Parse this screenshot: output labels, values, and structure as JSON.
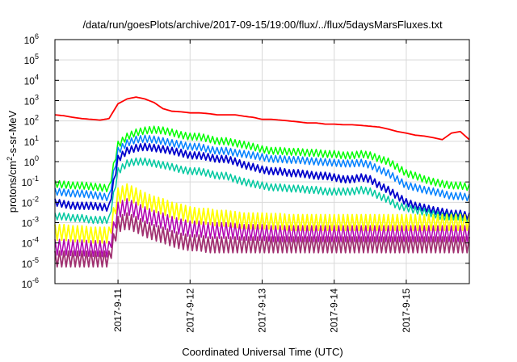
{
  "chart_data": {
    "type": "line",
    "title": "/data/run/goesPlots/archive/2017-09-15/19:00/flux/../flux/5daysMarsFluxes.txt",
    "xlabel": "Coordinated Universal Time (UTC)",
    "ylabel": {
      "pre": "protons/cm",
      "sup": "2",
      "post": "-s-sr-MeV"
    },
    "yscale": "log",
    "ylim": [
      1e-06,
      1000000.0
    ],
    "y_ticks": [
      {
        "exp": "-6",
        "value": 1e-06
      },
      {
        "exp": "-5",
        "value": 1e-05
      },
      {
        "exp": "-4",
        "value": 0.0001
      },
      {
        "exp": "-3",
        "value": 0.001
      },
      {
        "exp": "-2",
        "value": 0.01
      },
      {
        "exp": "-1",
        "value": 0.1
      },
      {
        "exp": "0",
        "value": 1
      },
      {
        "exp": "1",
        "value": 10
      },
      {
        "exp": "2",
        "value": 100
      },
      {
        "exp": "3",
        "value": 1000.0
      },
      {
        "exp": "4",
        "value": 10000.0
      },
      {
        "exp": "5",
        "value": 100000.0
      },
      {
        "exp": "6",
        "value": 1000000.0
      }
    ],
    "xlim": [
      "2017-09-10 03:00",
      "2017-09-15 21:00"
    ],
    "x_ticks": [
      {
        "label": "2017-9-11",
        "value": "2017-09-11 00:00"
      },
      {
        "label": "2017-9-12",
        "value": "2017-09-12 00:00"
      },
      {
        "label": "2017-9-13",
        "value": "2017-09-13 00:00"
      },
      {
        "label": "2017-9-14",
        "value": "2017-09-14 00:00"
      },
      {
        "label": "2017-9-15",
        "value": "2017-09-15 00:00"
      }
    ],
    "grid": true,
    "legend": false,
    "x": [
      "2017-09-10 03:00",
      "2017-09-10 06:00",
      "2017-09-10 09:00",
      "2017-09-10 12:00",
      "2017-09-10 15:00",
      "2017-09-10 18:00",
      "2017-09-10 21:00",
      "2017-09-11 00:00",
      "2017-09-11 03:00",
      "2017-09-11 06:00",
      "2017-09-11 09:00",
      "2017-09-11 12:00",
      "2017-09-11 15:00",
      "2017-09-11 18:00",
      "2017-09-11 21:00",
      "2017-09-12 00:00",
      "2017-09-12 03:00",
      "2017-09-12 06:00",
      "2017-09-12 09:00",
      "2017-09-12 12:00",
      "2017-09-12 15:00",
      "2017-09-12 18:00",
      "2017-09-12 21:00",
      "2017-09-13 00:00",
      "2017-09-13 03:00",
      "2017-09-13 06:00",
      "2017-09-13 09:00",
      "2017-09-13 12:00",
      "2017-09-13 15:00",
      "2017-09-13 18:00",
      "2017-09-13 21:00",
      "2017-09-14 00:00",
      "2017-09-14 03:00",
      "2017-09-14 06:00",
      "2017-09-14 09:00",
      "2017-09-14 12:00",
      "2017-09-14 15:00",
      "2017-09-14 18:00",
      "2017-09-14 21:00",
      "2017-09-15 00:00",
      "2017-09-15 03:00",
      "2017-09-15 06:00",
      "2017-09-15 09:00",
      "2017-09-15 12:00",
      "2017-09-15 15:00",
      "2017-09-15 18:00",
      "2017-09-15 21:00"
    ],
    "series": [
      {
        "color": "#ff0000",
        "width": 1.8,
        "values": [
          200,
          180,
          150,
          130,
          120,
          110,
          130,
          700,
          1200,
          1500,
          1200,
          800,
          400,
          300,
          280,
          250,
          250,
          230,
          200,
          200,
          200,
          170,
          150,
          120,
          120,
          110,
          100,
          90,
          80,
          80,
          70,
          70,
          65,
          65,
          60,
          55,
          50,
          40,
          30,
          25,
          20,
          18,
          15,
          12,
          25,
          30,
          12
        ]
      },
      {
        "color": "#00ff00",
        "width": 1.5,
        "values": [
          0.12,
          0.11,
          0.1,
          0.1,
          0.09,
          0.08,
          0.07,
          10,
          25,
          40,
          50,
          55,
          50,
          40,
          30,
          25,
          25,
          20,
          15,
          15,
          12,
          10,
          8,
          6,
          5,
          5,
          4.5,
          4.5,
          4,
          4,
          3.5,
          3.5,
          3,
          3,
          3.5,
          3,
          2,
          1.5,
          0.8,
          0.4,
          0.3,
          0.2,
          0.15,
          0.12,
          0.1,
          0.1,
          0.08
        ]
      },
      {
        "color": "#0080ff",
        "width": 1.5,
        "values": [
          0.05,
          0.045,
          0.04,
          0.04,
          0.035,
          0.03,
          0.025,
          5,
          12,
          18,
          20,
          18,
          15,
          12,
          10,
          8,
          8,
          6,
          5,
          5,
          4,
          3.5,
          3,
          2.5,
          2,
          2,
          1.8,
          1.8,
          1.6,
          1.5,
          1.4,
          1.3,
          1.2,
          1.2,
          1.3,
          1,
          0.6,
          0.4,
          0.2,
          0.1,
          0.08,
          0.06,
          0.05,
          0.04,
          0.03,
          0.03,
          0.025
        ]
      },
      {
        "color": "#0000cc",
        "width": 1.8,
        "values": [
          0.015,
          0.012,
          0.01,
          0.01,
          0.01,
          0.009,
          0.008,
          2,
          5,
          7,
          8,
          7,
          6,
          5,
          4,
          3,
          3,
          2.5,
          2,
          2,
          1.5,
          1,
          0.8,
          0.6,
          0.5,
          0.5,
          0.4,
          0.4,
          0.35,
          0.3,
          0.3,
          0.25,
          0.2,
          0.2,
          0.25,
          0.2,
          0.1,
          0.06,
          0.03,
          0.015,
          0.01,
          0.008,
          0.006,
          0.005,
          0.004,
          0.004,
          0.003
        ]
      },
      {
        "color": "#00c8a0",
        "width": 1.5,
        "values": [
          0.003,
          0.003,
          0.0025,
          0.0025,
          0.002,
          0.002,
          0.002,
          0.5,
          1.2,
          1.5,
          1.5,
          1.2,
          1,
          0.8,
          0.6,
          0.5,
          0.5,
          0.4,
          0.3,
          0.3,
          0.2,
          0.15,
          0.12,
          0.1,
          0.08,
          0.08,
          0.07,
          0.07,
          0.06,
          0.06,
          0.05,
          0.05,
          0.05,
          0.05,
          0.06,
          0.05,
          0.03,
          0.02,
          0.01,
          0.008,
          0.006,
          0.005,
          0.004,
          0.003,
          0.003,
          0.003,
          0.002
        ]
      },
      {
        "color": "#ffff00",
        "width": 1.8,
        "values": [
          0.0008,
          0.0008,
          0.0007,
          0.0007,
          0.0006,
          0.0006,
          0.0006,
          0.05,
          0.08,
          0.05,
          0.03,
          0.02,
          0.015,
          0.01,
          0.008,
          0.006,
          0.005,
          0.005,
          0.004,
          0.004,
          0.0035,
          0.003,
          0.003,
          0.003,
          0.0028,
          0.0028,
          0.0025,
          0.0025,
          0.0025,
          0.0025,
          0.0025,
          0.0025,
          0.0025,
          0.0025,
          0.0025,
          0.0025,
          0.0025,
          0.0025,
          0.0025,
          0.0025,
          0.0025,
          0.0025,
          0.0025,
          0.0025,
          0.0025,
          0.0025,
          0.0025
        ]
      },
      {
        "color": "#b000b0",
        "width": 1.5,
        "values": [
          0.00015,
          0.00015,
          0.00014,
          0.00014,
          0.00013,
          0.00013,
          0.00012,
          0.01,
          0.015,
          0.01,
          0.006,
          0.004,
          0.003,
          0.002,
          0.0015,
          0.0012,
          0.0012,
          0.001,
          0.001,
          0.001,
          0.0009,
          0.0008,
          0.0008,
          0.0008,
          0.0007,
          0.0007,
          0.0007,
          0.0007,
          0.0007,
          0.0007,
          0.0007,
          0.0007,
          0.0007,
          0.0007,
          0.0007,
          0.0007,
          0.0007,
          0.0007,
          0.0007,
          0.0007,
          0.0007,
          0.0007,
          0.0007,
          0.0007,
          0.0007,
          0.0007,
          0.0007
        ]
      },
      {
        "color": "#a03070",
        "width": 1.8,
        "values": [
          4e-05,
          4e-05,
          4e-05,
          4e-05,
          4e-05,
          4e-05,
          4e-05,
          0.002,
          0.003,
          0.002,
          0.0012,
          0.0008,
          0.0006,
          0.0004,
          0.0003,
          0.00025,
          0.00025,
          0.0002,
          0.0002,
          0.0002,
          0.0002,
          0.0002,
          0.0002,
          0.0002,
          0.0002,
          0.0002,
          0.0002,
          0.0002,
          0.0002,
          0.0002,
          0.0002,
          0.0002,
          0.0002,
          0.0002,
          0.0002,
          0.0002,
          0.0002,
          0.0002,
          0.0002,
          0.0002,
          0.0002,
          0.0002,
          0.0002,
          0.0002,
          0.0002,
          0.0002,
          0.0002
        ]
      }
    ]
  }
}
